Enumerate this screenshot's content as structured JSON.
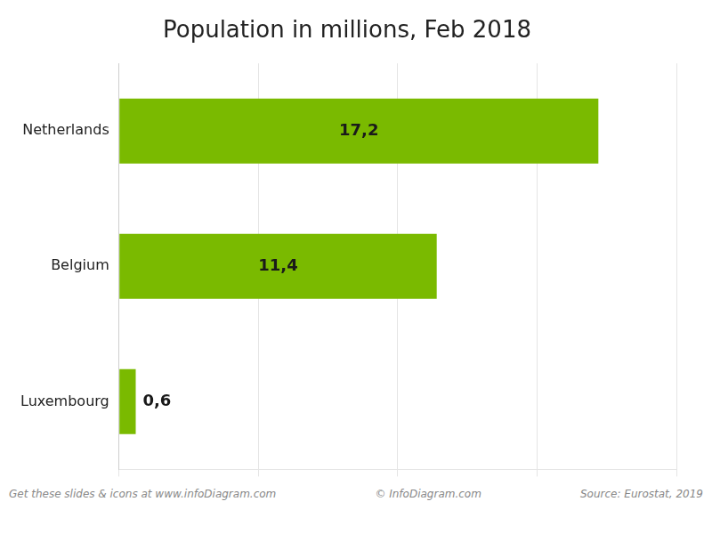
{
  "chart_data": {
    "type": "bar",
    "orientation": "horizontal",
    "title": "Population in millions, Feb 2018",
    "categories": [
      "Netherlands",
      "Belgium",
      "Luxembourg"
    ],
    "values": [
      17.2,
      11.4,
      0.6
    ],
    "value_labels": [
      "17,2",
      "11,4",
      "0,6"
    ],
    "data_labels": true,
    "color": "#7aba00",
    "xlim": [
      0,
      20
    ],
    "xticks": [
      0,
      5,
      10,
      15,
      20
    ],
    "grid": true,
    "tick_labels": "y",
    "annotations": [
      "Get these slides & icons at www.infoDiagram.com",
      "© InfoDiagram.com",
      "Source: Eurostat, 2019"
    ]
  }
}
